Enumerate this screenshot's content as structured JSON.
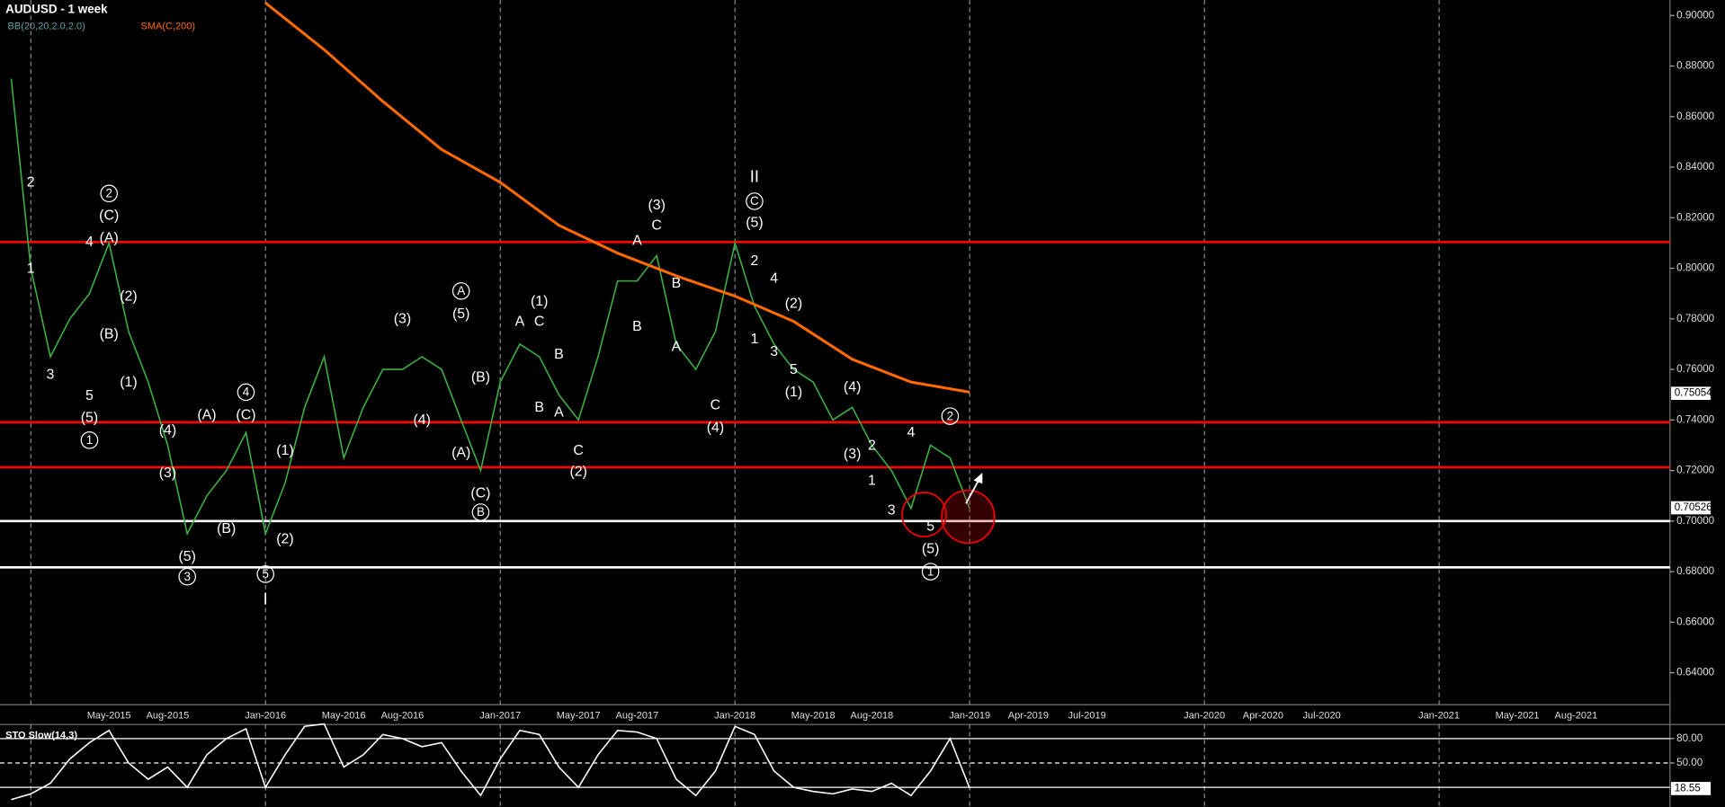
{
  "chart_data": [
    {
      "type": "line",
      "title": "AUDUSD - 1 week",
      "indicators": [
        {
          "label": "BB(20,20,2.0,2.0)",
          "color": "#5f9ea0"
        },
        {
          "label": "SMA(C,200)",
          "color": "#ff6a00"
        }
      ],
      "x": [
        "2014-12",
        "2015-01",
        "2015-02",
        "2015-03",
        "2015-04",
        "2015-05",
        "2015-06",
        "2015-07",
        "2015-08",
        "2015-09",
        "2015-10",
        "2015-11",
        "2015-12",
        "2016-01",
        "2016-02",
        "2016-03",
        "2016-04",
        "2016-05",
        "2016-06",
        "2016-07",
        "2016-08",
        "2016-09",
        "2016-10",
        "2016-11",
        "2016-12",
        "2017-01",
        "2017-02",
        "2017-03",
        "2017-04",
        "2017-05",
        "2017-06",
        "2017-07",
        "2017-08",
        "2017-09",
        "2017-10",
        "2017-11",
        "2017-12",
        "2018-01",
        "2018-02",
        "2018-03",
        "2018-04",
        "2018-05",
        "2018-06",
        "2018-07",
        "2018-08",
        "2018-09",
        "2018-10",
        "2018-11",
        "2018-12",
        "2019-01"
      ],
      "series": [
        {
          "color": "#3cb043",
          "values": [
            0.875,
            0.8,
            0.765,
            0.78,
            0.79,
            0.81,
            0.775,
            0.755,
            0.73,
            0.695,
            0.71,
            0.72,
            0.735,
            0.695,
            0.715,
            0.745,
            0.765,
            0.725,
            0.745,
            0.76,
            0.76,
            0.765,
            0.76,
            0.74,
            0.72,
            0.755,
            0.77,
            0.765,
            0.75,
            0.74,
            0.765,
            0.795,
            0.795,
            0.805,
            0.77,
            0.76,
            0.775,
            0.81,
            0.785,
            0.77,
            0.76,
            0.755,
            0.74,
            0.745,
            0.73,
            0.72,
            0.705,
            0.73,
            0.725,
            0.705
          ]
        },
        {
          "color": "#ff6a00",
          "x": [
            "2016-01",
            "2016-04",
            "2016-07",
            "2016-10",
            "2017-01",
            "2017-04",
            "2017-07",
            "2017-10",
            "2018-01",
            "2018-04",
            "2018-07",
            "2018-10",
            "2019-01"
          ],
          "values": [
            0.905,
            0.8865,
            0.866,
            0.847,
            0.834,
            0.817,
            0.806,
            0.797,
            0.789,
            0.779,
            0.764,
            0.755,
            0.751
          ]
        }
      ],
      "levels": [
        {
          "value": 0.8104,
          "color": "#ff0000"
        },
        {
          "value": 0.7391,
          "color": "#ff0000"
        },
        {
          "value": 0.7213,
          "color": "#ff0000"
        },
        {
          "value": 0.7,
          "color": "#ffffff"
        },
        {
          "value": 0.6817,
          "color": "#ffffff"
        }
      ],
      "price_tags": [
        {
          "value": 0.75054,
          "label": "0.75054"
        },
        {
          "value": 0.70526,
          "label": "0.70526"
        }
      ],
      "xlim": [
        "2014-12",
        "2021-12"
      ],
      "ylim": [
        0.6278,
        0.9061
      ],
      "yticks": [
        {
          "value": 0.64,
          "label": "0.64000"
        },
        {
          "value": 0.66,
          "label": "0.66000"
        },
        {
          "value": 0.68,
          "label": "0.68000"
        },
        {
          "value": 0.7,
          "label": "0.70000"
        },
        {
          "value": 0.72,
          "label": "0.72000"
        },
        {
          "value": 0.74,
          "label": "0.74000"
        },
        {
          "value": 0.76,
          "label": "0.76000"
        },
        {
          "value": 0.78,
          "label": "0.78000"
        },
        {
          "value": 0.8,
          "label": "0.80000"
        },
        {
          "value": 0.82,
          "label": "0.82000"
        },
        {
          "value": 0.84,
          "label": "0.84000"
        },
        {
          "value": 0.86,
          "label": "0.86000"
        },
        {
          "value": 0.88,
          "label": "0.88000"
        },
        {
          "value": 0.9,
          "label": "0.90000"
        }
      ],
      "xticks": [
        {
          "value": "2015-05",
          "label": "May-2015"
        },
        {
          "value": "2015-08",
          "label": "Aug-2015"
        },
        {
          "value": "2016-01",
          "label": "Jan-2016"
        },
        {
          "value": "2016-05",
          "label": "May-2016"
        },
        {
          "value": "2016-08",
          "label": "Aug-2016"
        },
        {
          "value": "2017-01",
          "label": "Jan-2017"
        },
        {
          "value": "2017-05",
          "label": "May-2017"
        },
        {
          "value": "2017-08",
          "label": "Aug-2017"
        },
        {
          "value": "2018-01",
          "label": "Jan-2018"
        },
        {
          "value": "2018-05",
          "label": "May-2018"
        },
        {
          "value": "2018-08",
          "label": "Aug-2018"
        },
        {
          "value": "2019-01",
          "label": "Jan-2019"
        },
        {
          "value": "2019-04",
          "label": "Apr-2019"
        },
        {
          "value": "2019-07",
          "label": "Jul-2019"
        },
        {
          "value": "2020-01",
          "label": "Jan-2020"
        },
        {
          "value": "2020-04",
          "label": "Apr-2020"
        },
        {
          "value": "2020-07",
          "label": "Jul-2020"
        },
        {
          "value": "2021-01",
          "label": "Jan-2021"
        },
        {
          "value": "2021-05",
          "label": "May-2021"
        },
        {
          "value": "2021-08",
          "label": "Aug-2021"
        }
      ],
      "xgrid": [
        "2015-01",
        "2016-01",
        "2017-01",
        "2018-01",
        "2019-01",
        "2020-01",
        "2021-01"
      ],
      "annotations": [
        {
          "text": "2",
          "x": "2015-01",
          "y": 0.834
        },
        {
          "text": "1",
          "x": "2015-01",
          "y": 0.8
        },
        {
          "text": "4",
          "x": "2015-04",
          "y": 0.8104
        },
        {
          "text": "3",
          "x": "2015-02",
          "y": 0.758
        },
        {
          "text": "5",
          "x": "2015-04",
          "y": 0.7496
        },
        {
          "text": "(5)",
          "x": "2015-04",
          "y": 0.741
        },
        {
          "text": "1",
          "x": "2015-04",
          "y": 0.732,
          "circled": true
        },
        {
          "text": "2",
          "x": "2015-05",
          "y": 0.8296,
          "circled": true
        },
        {
          "text": "(C)",
          "x": "2015-05",
          "y": 0.821
        },
        {
          "text": "(A)",
          "x": "2015-05",
          "y": 0.812
        },
        {
          "text": "(2)",
          "x": "2015-06",
          "y": 0.789
        },
        {
          "text": "(B)",
          "x": "2015-05",
          "y": 0.774
        },
        {
          "text": "(1)",
          "x": "2015-06",
          "y": 0.755
        },
        {
          "text": "(4)",
          "x": "2015-08",
          "y": 0.736
        },
        {
          "text": "(3)",
          "x": "2015-08",
          "y": 0.719
        },
        {
          "text": "(5)",
          "x": "2015-09",
          "y": 0.686
        },
        {
          "text": "3",
          "x": "2015-09",
          "y": 0.678,
          "circled": true
        },
        {
          "text": "(A)",
          "x": "2015-10",
          "y": 0.742
        },
        {
          "text": "4",
          "x": "2015-12",
          "y": 0.751,
          "circled": true
        },
        {
          "text": "(C)",
          "x": "2015-12",
          "y": 0.742
        },
        {
          "text": "(B)",
          "x": "2015-11",
          "y": 0.697
        },
        {
          "text": "(1)",
          "x": "2016-02",
          "y": 0.728
        },
        {
          "text": "(2)",
          "x": "2016-02",
          "y": 0.693
        },
        {
          "text": "5",
          "x": "2016-01",
          "y": 0.679,
          "circled": true
        },
        {
          "text": "I",
          "x": "2016-01",
          "y": 0.669,
          "serif": true
        },
        {
          "text": "(3)",
          "x": "2016-08",
          "y": 0.78
        },
        {
          "text": "(4)",
          "x": "2016-09",
          "y": 0.74
        },
        {
          "text": "A",
          "x": "2016-11",
          "y": 0.791,
          "circled": true
        },
        {
          "text": "(5)",
          "x": "2016-11",
          "y": 0.782
        },
        {
          "text": "(B)",
          "x": "2016-12",
          "y": 0.757
        },
        {
          "text": "(A)",
          "x": "2016-11",
          "y": 0.727
        },
        {
          "text": "(C)",
          "x": "2016-12",
          "y": 0.711
        },
        {
          "text": "B",
          "x": "2016-12",
          "y": 0.7035,
          "circled": true
        },
        {
          "text": "(1)",
          "x": "2017-03",
          "y": 0.787
        },
        {
          "text": "A",
          "x": "2017-02",
          "y": 0.779
        },
        {
          "text": "C",
          "x": "2017-03",
          "y": 0.779
        },
        {
          "text": "B",
          "x": "2017-04",
          "y": 0.766
        },
        {
          "text": "B",
          "x": "2017-03",
          "y": 0.745
        },
        {
          "text": "A",
          "x": "2017-04",
          "y": 0.743
        },
        {
          "text": "C",
          "x": "2017-05",
          "y": 0.728
        },
        {
          "text": "(2)",
          "x": "2017-05",
          "y": 0.7196
        },
        {
          "text": "(3)",
          "x": "2017-09",
          "y": 0.825
        },
        {
          "text": "A",
          "x": "2017-08",
          "y": 0.811
        },
        {
          "text": "C",
          "x": "2017-09",
          "y": 0.817
        },
        {
          "text": "B",
          "x": "2017-10",
          "y": 0.794
        },
        {
          "text": "B",
          "x": "2017-08",
          "y": 0.777
        },
        {
          "text": "A",
          "x": "2017-10",
          "y": 0.769
        },
        {
          "text": "C",
          "x": "2017-12",
          "y": 0.746
        },
        {
          "text": "(4)",
          "x": "2017-12",
          "y": 0.737
        },
        {
          "text": "II",
          "x": "2018-02",
          "y": 0.836,
          "serif": true
        },
        {
          "text": "C",
          "x": "2018-02",
          "y": 0.8265,
          "circled": true
        },
        {
          "text": "(5)",
          "x": "2018-02",
          "y": 0.818
        },
        {
          "text": "2",
          "x": "2018-02",
          "y": 0.803
        },
        {
          "text": "4",
          "x": "2018-03",
          "y": 0.796
        },
        {
          "text": "1",
          "x": "2018-02",
          "y": 0.772
        },
        {
          "text": "3",
          "x": "2018-03",
          "y": 0.767
        },
        {
          "text": "5",
          "x": "2018-04",
          "y": 0.76
        },
        {
          "text": "(2)",
          "x": "2018-04",
          "y": 0.786
        },
        {
          "text": "(1)",
          "x": "2018-04",
          "y": 0.751
        },
        {
          "text": "(4)",
          "x": "2018-07",
          "y": 0.753
        },
        {
          "text": "2",
          "x": "2018-08",
          "y": 0.73
        },
        {
          "text": "(3)",
          "x": "2018-07",
          "y": 0.7265
        },
        {
          "text": "4",
          "x": "2018-10",
          "y": 0.735
        },
        {
          "text": "1",
          "x": "2018-08",
          "y": 0.716
        },
        {
          "text": "3",
          "x": "2018-09",
          "y": 0.7044
        },
        {
          "text": "5",
          "x": "2018-11",
          "y": 0.698
        },
        {
          "text": "(5)",
          "x": "2018-11",
          "y": 0.689
        },
        {
          "text": "1",
          "x": "2018-11",
          "y": 0.68,
          "circled": true
        },
        {
          "text": "2",
          "x": "2018-12",
          "y": 0.7415,
          "circled": true
        }
      ]
    },
    {
      "type": "line",
      "title": "STO Slow(14,3)",
      "x": [
        "2014-12",
        "2015-01",
        "2015-02",
        "2015-03",
        "2015-04",
        "2015-05",
        "2015-06",
        "2015-07",
        "2015-08",
        "2015-09",
        "2015-10",
        "2015-11",
        "2015-12",
        "2016-01",
        "2016-02",
        "2016-03",
        "2016-04",
        "2016-05",
        "2016-06",
        "2016-07",
        "2016-08",
        "2016-09",
        "2016-10",
        "2016-11",
        "2016-12",
        "2017-01",
        "2017-02",
        "2017-03",
        "2017-04",
        "2017-05",
        "2017-06",
        "2017-07",
        "2017-08",
        "2017-09",
        "2017-10",
        "2017-11",
        "2017-12",
        "2018-01",
        "2018-02",
        "2018-03",
        "2018-04",
        "2018-05",
        "2018-06",
        "2018-07",
        "2018-08",
        "2018-09",
        "2018-10",
        "2018-11",
        "2018-12",
        "2019-01"
      ],
      "series": [
        {
          "color": "#ffffff",
          "values": [
            5,
            12,
            25,
            55,
            75,
            90,
            50,
            30,
            45,
            20,
            60,
            80,
            92,
            20,
            60,
            95,
            98,
            45,
            60,
            85,
            80,
            70,
            75,
            40,
            10,
            55,
            90,
            85,
            45,
            20,
            60,
            90,
            88,
            80,
            30,
            10,
            40,
            95,
            85,
            40,
            20,
            15,
            12,
            18,
            15,
            25,
            10,
            40,
            80,
            19
          ]
        }
      ],
      "levels": [
        80,
        50,
        20
      ],
      "ylim": [
        0,
        100
      ],
      "yticks": [
        {
          "value": 80,
          "label": "80.00"
        },
        {
          "value": 50,
          "label": "50.00"
        }
      ],
      "price_tags": [
        {
          "value": 18.55,
          "label": "18.55"
        }
      ]
    }
  ]
}
